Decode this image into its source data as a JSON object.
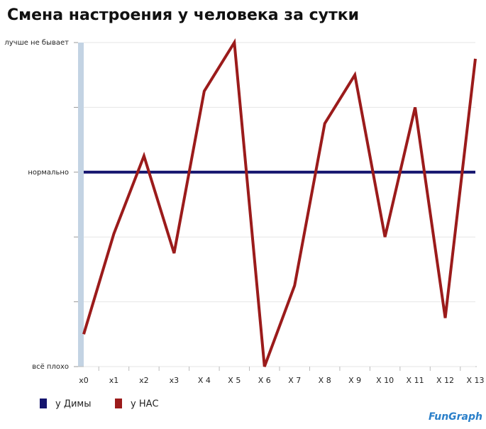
{
  "chart_data": {
    "type": "line",
    "title": "Смена настроения у человека за сутки",
    "categories": [
      "x0",
      "x1",
      "x2",
      "x3",
      "X 4",
      "X 5",
      "X 6",
      "X 7",
      "X 8",
      "X 9",
      "X 10",
      "X 11",
      "X 12",
      "X 13"
    ],
    "series": [
      {
        "name": "у Димы",
        "color": "#14146e",
        "values": [
          60,
          60,
          60,
          60,
          60,
          60,
          60,
          60,
          60,
          60,
          60,
          60,
          60,
          60
        ]
      },
      {
        "name": "у НАС",
        "color": "#9b1b1b",
        "values": [
          10,
          41,
          65,
          35,
          85,
          100,
          0,
          25,
          75,
          90,
          40,
          80,
          15,
          95
        ]
      }
    ],
    "ylim": [
      0,
      100
    ],
    "yticks": [
      {
        "value": 0,
        "label": "всё плохо"
      },
      {
        "value": 20,
        "label": null
      },
      {
        "value": 40,
        "label": null
      },
      {
        "value": 60,
        "label": "нормально"
      },
      {
        "value": 80,
        "label": null
      },
      {
        "value": 100,
        "label": "лучше не бывает"
      }
    ],
    "grid": true,
    "logo": "FunGraph"
  }
}
